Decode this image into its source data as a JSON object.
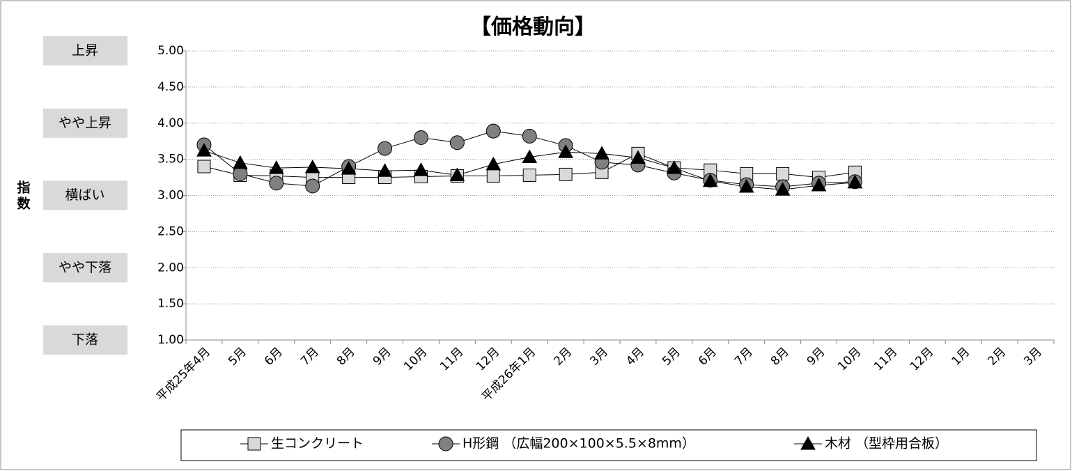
{
  "chart_data": {
    "type": "line",
    "title": "【価格動向】",
    "y_label": "指数",
    "categories": [
      "平成25年4月",
      "5月",
      "6月",
      "7月",
      "8月",
      "9月",
      "10月",
      "11月",
      "12月",
      "平成26年1月",
      "2月",
      "3月",
      "4月",
      "5月",
      "6月",
      "7月",
      "8月",
      "9月",
      "10月",
      "11月",
      "12月",
      "1月",
      "2月",
      "3月"
    ],
    "series": [
      {
        "name": "生コンクリート",
        "color": "#d9d9d9",
        "marker": "square",
        "values": [
          3.4,
          3.28,
          3.27,
          3.25,
          3.25,
          3.25,
          3.26,
          3.27,
          3.27,
          3.28,
          3.29,
          3.32,
          3.58,
          3.38,
          3.35,
          3.3,
          3.3,
          3.25,
          3.32,
          null,
          null,
          null,
          null,
          null
        ]
      },
      {
        "name": "H形鋼 （広幅200×100×5.5×8mm）",
        "color": "#808080",
        "marker": "circle",
        "values": [
          3.7,
          3.3,
          3.17,
          3.13,
          3.4,
          3.65,
          3.8,
          3.73,
          3.89,
          3.82,
          3.69,
          3.46,
          3.42,
          3.31,
          3.21,
          3.15,
          3.12,
          3.17,
          3.19,
          null,
          null,
          null,
          null,
          null
        ]
      },
      {
        "name": "木材 （型枠用合板）",
        "color": "#000000",
        "marker": "triangle",
        "values": [
          3.62,
          3.45,
          3.38,
          3.39,
          3.37,
          3.34,
          3.35,
          3.28,
          3.43,
          3.53,
          3.6,
          3.58,
          3.52,
          3.38,
          3.2,
          3.12,
          3.08,
          3.14,
          3.18,
          null,
          null,
          null,
          null,
          null
        ]
      }
    ],
    "ylim": [
      1,
      5
    ],
    "yticks": [
      {
        "value": 1,
        "label": "1.00"
      },
      {
        "value": 1.5,
        "label": "1.50"
      },
      {
        "value": 2,
        "label": "2.00"
      },
      {
        "value": 2.5,
        "label": "2.50"
      },
      {
        "value": 3,
        "label": "3.00"
      },
      {
        "value": 3.5,
        "label": "3.50"
      },
      {
        "value": 4,
        "label": "4.00"
      },
      {
        "value": 4.5,
        "label": "4.50"
      },
      {
        "value": 5,
        "label": "5.00"
      }
    ],
    "level_labels": [
      {
        "value": 5,
        "label": "上昇"
      },
      {
        "value": 4,
        "label": "やや上昇"
      },
      {
        "value": 3,
        "label": "横ばい"
      },
      {
        "value": 2,
        "label": "やや下落"
      },
      {
        "value": 1,
        "label": "下落"
      }
    ],
    "grid": true
  }
}
